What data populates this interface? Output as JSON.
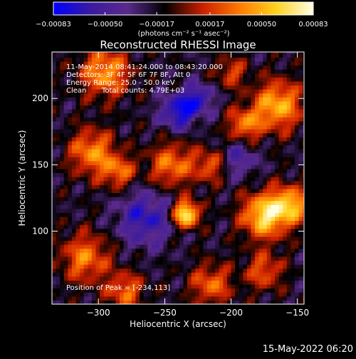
{
  "chart_data": {
    "type": "heatmap",
    "title": "Reconstructed RHESSI Image",
    "xlabel": "Heliocentric X (arcsec)",
    "ylabel": "Heliocentric Y (arcsec)",
    "xlim": [
      -335,
      -145
    ],
    "ylim": [
      45,
      235
    ],
    "x_ticks": [
      -300,
      -250,
      -200,
      -150
    ],
    "y_ticks": [
      100,
      150,
      200
    ],
    "x_tick_labels": [
      "−300",
      "−250",
      "−200",
      "−150"
    ],
    "y_tick_labels": [
      "100",
      "150",
      "200"
    ],
    "colorbar": {
      "min": -0.00083,
      "max": 0.00083,
      "tick_values": [
        -0.00083,
        -0.0005,
        -0.00017,
        0.00017,
        0.0005,
        0.00083
      ],
      "tick_labels": [
        "−0.00083",
        "−0.00050",
        "−0.00017",
        "0.00017",
        "0.00050",
        "0.00083"
      ],
      "unit_label": "(photons cm⁻² s⁻¹ asec⁻²)",
      "colormap_stops": [
        "#0000ff",
        "#3a1aa0",
        "#5a2a8c",
        "#000000",
        "#c81e00",
        "#ff7800",
        "#ffd21e",
        "#ffffe6"
      ]
    },
    "annotations": {
      "time": "11-May-2014 08:41:24.000 to 08:43:20.000",
      "detectors": "Detectors: 3F 4F 5F 6F 7F 8F, Att 0",
      "energy": "Energy Range: 25.0 - 50.0 keV",
      "method": "Clean",
      "counts": "Total counts: 4.79E+03",
      "peak": "Position of Peak = [-234,113]"
    },
    "peak": {
      "x": -234,
      "y": 113
    },
    "sources": [
      {
        "x": -234,
        "y": 113,
        "sigma": 7,
        "amp": 1.0
      },
      {
        "x": -175,
        "y": 112,
        "sigma": 12,
        "amp": 0.85
      },
      {
        "x": -155,
        "y": 120,
        "sigma": 10,
        "amp": 0.7
      },
      {
        "x": -165,
        "y": 195,
        "sigma": 13,
        "amp": 0.72
      },
      {
        "x": -190,
        "y": 180,
        "sigma": 9,
        "amp": 0.55
      },
      {
        "x": -295,
        "y": 220,
        "sigma": 13,
        "amp": 0.65
      },
      {
        "x": -305,
        "y": 160,
        "sigma": 12,
        "amp": 0.6
      },
      {
        "x": -285,
        "y": 145,
        "sigma": 9,
        "amp": 0.5
      },
      {
        "x": -245,
        "y": 150,
        "sigma": 12,
        "amp": 0.55
      },
      {
        "x": -215,
        "y": 150,
        "sigma": 9,
        "amp": 0.45
      },
      {
        "x": -310,
        "y": 80,
        "sigma": 13,
        "amp": 0.55
      },
      {
        "x": -280,
        "y": 55,
        "sigma": 10,
        "amp": 0.5
      },
      {
        "x": -215,
        "y": 60,
        "sigma": 11,
        "amp": 0.5
      },
      {
        "x": -175,
        "y": 70,
        "sigma": 10,
        "amp": 0.45
      },
      {
        "x": -200,
        "y": 220,
        "sigma": 8,
        "amp": 0.4
      },
      {
        "x": -240,
        "y": 190,
        "sigma": 9,
        "amp": -0.6
      },
      {
        "x": -265,
        "y": 110,
        "sigma": 14,
        "amp": -0.5
      },
      {
        "x": -225,
        "y": 200,
        "sigma": 8,
        "amp": -0.5
      },
      {
        "x": -195,
        "y": 155,
        "sigma": 10,
        "amp": -0.35
      }
    ]
  },
  "footer": {
    "date": "15-May-2022 06:20"
  }
}
